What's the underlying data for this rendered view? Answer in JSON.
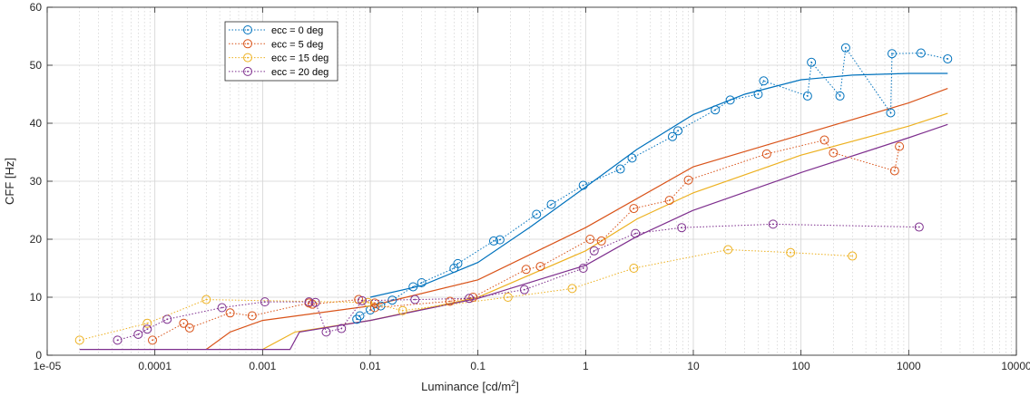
{
  "chart_data": {
    "type": "line",
    "xlabel": "Luminance  [cd/m",
    "xlabel_sup": "2",
    "xlabel_end": "]",
    "ylabel": "CFF [Hz]",
    "xscale": "log",
    "xlim": [
      1e-05,
      10000
    ],
    "ylim": [
      0,
      60
    ],
    "x_ticks": [
      1e-05,
      0.0001,
      0.001,
      0.01,
      0.1,
      1,
      10,
      100,
      1000,
      10000
    ],
    "x_tick_labels": [
      "1e-05",
      "0.0001",
      "0.001",
      "0.01",
      "0.1",
      "1",
      "10",
      "100",
      "1000",
      "10000"
    ],
    "y_ticks": [
      0,
      10,
      20,
      30,
      40,
      50,
      60
    ],
    "y_tick_labels": [
      "0",
      "10",
      "20",
      "30",
      "40",
      "50",
      "60"
    ],
    "grid": true,
    "minor_grid": true,
    "legend_position": "top-left",
    "series": [
      {
        "name": "ecc = 0 deg",
        "color": "#0072BD",
        "points": [
          [
            0.0075,
            6.2
          ],
          [
            0.008,
            6.8
          ],
          [
            0.01,
            7.8
          ],
          [
            0.0125,
            8.5
          ],
          [
            0.016,
            9.5
          ],
          [
            0.025,
            11.8
          ],
          [
            0.03,
            12.5
          ],
          [
            0.06,
            15
          ],
          [
            0.065,
            15.8
          ],
          [
            0.14,
            19.7
          ],
          [
            0.16,
            19.9
          ],
          [
            0.35,
            24.3
          ],
          [
            0.48,
            26
          ],
          [
            0.95,
            29.3
          ],
          [
            2.1,
            32.1
          ],
          [
            2.7,
            34
          ],
          [
            6.4,
            37.7
          ],
          [
            7.2,
            38.7
          ],
          [
            16,
            42.3
          ],
          [
            22,
            44
          ],
          [
            40,
            45
          ],
          [
            45,
            47.3
          ],
          [
            115,
            44.7
          ],
          [
            125,
            50.5
          ],
          [
            230,
            44.7
          ],
          [
            260,
            53
          ],
          [
            680,
            41.8
          ],
          [
            700,
            52
          ],
          [
            1300,
            52.1
          ],
          [
            2300,
            51.1
          ]
        ],
        "fit": [
          [
            0.01,
            10
          ],
          [
            0.03,
            12
          ],
          [
            0.1,
            16
          ],
          [
            0.3,
            22
          ],
          [
            1,
            29
          ],
          [
            3,
            35.5
          ],
          [
            10,
            41.5
          ],
          [
            30,
            45
          ],
          [
            100,
            47.5
          ],
          [
            300,
            48.3
          ],
          [
            1000,
            48.6
          ],
          [
            2300,
            48.6
          ]
        ]
      },
      {
        "name": "ecc = 5 deg",
        "color": "#D95319",
        "points": [
          [
            9.5e-05,
            2.6
          ],
          [
            0.000185,
            5.5
          ],
          [
            0.00021,
            4.7
          ],
          [
            0.0005,
            7.3
          ],
          [
            0.0008,
            6.8
          ],
          [
            0.0027,
            9
          ],
          [
            0.0029,
            8.8
          ],
          [
            0.0078,
            9.6
          ],
          [
            0.011,
            9
          ],
          [
            0.011,
            8.2
          ],
          [
            0.055,
            9.3
          ],
          [
            0.09,
            10
          ],
          [
            0.28,
            14.8
          ],
          [
            0.38,
            15.3
          ],
          [
            1.1,
            20
          ],
          [
            1.4,
            19.7
          ],
          [
            2.8,
            25.3
          ],
          [
            6,
            26.7
          ],
          [
            9,
            30.2
          ],
          [
            48,
            34.7
          ],
          [
            165,
            37.1
          ],
          [
            200,
            34.9
          ],
          [
            740,
            31.8
          ],
          [
            820,
            36
          ]
        ],
        "fit": [
          [
            0.0003,
            1
          ],
          [
            0.0005,
            4
          ],
          [
            0.001,
            6
          ],
          [
            0.01,
            8.5
          ],
          [
            0.1,
            13
          ],
          [
            1,
            22
          ],
          [
            10,
            32.5
          ],
          [
            100,
            38
          ],
          [
            1000,
            43.5
          ],
          [
            2300,
            46
          ]
        ]
      },
      {
        "name": "ecc = 15 deg",
        "color": "#EDB120",
        "points": [
          [
            2e-05,
            2.6
          ],
          [
            8.5e-05,
            5.5
          ],
          [
            0.0003,
            9.6
          ],
          [
            0.0095,
            9.1
          ],
          [
            0.02,
            7.7
          ],
          [
            0.19,
            10
          ],
          [
            0.75,
            11.5
          ],
          [
            2.8,
            15
          ],
          [
            21,
            18.2
          ],
          [
            80,
            17.7
          ],
          [
            300,
            17.1
          ]
        ],
        "fit": [
          [
            0.001,
            1
          ],
          [
            0.002,
            4
          ],
          [
            0.01,
            6
          ],
          [
            0.1,
            10
          ],
          [
            1,
            18
          ],
          [
            3,
            23.5
          ],
          [
            10,
            28
          ],
          [
            100,
            34.5
          ],
          [
            1000,
            39.5
          ],
          [
            2300,
            41.7
          ]
        ]
      },
      {
        "name": "ecc = 20 deg",
        "color": "#7E2F8E",
        "points": [
          [
            4.5e-05,
            2.6
          ],
          [
            7e-05,
            3.6
          ],
          [
            8.5e-05,
            4.5
          ],
          [
            0.00013,
            6.2
          ],
          [
            0.00042,
            8.2
          ],
          [
            0.00105,
            9.2
          ],
          [
            0.0027,
            9.2
          ],
          [
            0.0031,
            9.1
          ],
          [
            0.0039,
            4
          ],
          [
            0.0054,
            4.6
          ],
          [
            0.0084,
            9.4
          ],
          [
            0.026,
            9.6
          ],
          [
            0.083,
            9.8
          ],
          [
            0.27,
            11.3
          ],
          [
            0.95,
            15
          ],
          [
            1.2,
            18
          ],
          [
            2.9,
            21
          ],
          [
            7.8,
            22
          ],
          [
            55,
            22.6
          ],
          [
            1250,
            22.1
          ]
        ],
        "fit": [
          [
            2e-05,
            1
          ],
          [
            0.0018,
            1
          ],
          [
            0.0022,
            4
          ],
          [
            0.01,
            6
          ],
          [
            0.1,
            9.8
          ],
          [
            1,
            15.5
          ],
          [
            3,
            20.5
          ],
          [
            10,
            25
          ],
          [
            100,
            31.5
          ],
          [
            1000,
            37.5
          ],
          [
            2300,
            39.8
          ]
        ]
      }
    ]
  }
}
